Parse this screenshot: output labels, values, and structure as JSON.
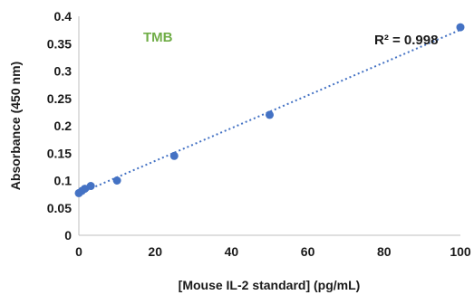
{
  "chart_data": {
    "type": "scatter",
    "title": "",
    "xlabel": "[Mouse IL-2 standard] (pg/mL)",
    "ylabel": "Absorbance (450 nm)",
    "xlim": [
      0,
      100
    ],
    "ylim": [
      0,
      0.4
    ],
    "x_ticks": [
      "0",
      "20",
      "40",
      "60",
      "80",
      "100"
    ],
    "y_ticks": [
      "0",
      "0.05",
      "0.1",
      "0.15",
      "0.2",
      "0.25",
      "0.3",
      "0.35",
      "0.4"
    ],
    "grid": false,
    "legend": "none",
    "series": [
      {
        "x": [
          0,
          0.78,
          1.56,
          3.13,
          10,
          25,
          50,
          100
        ],
        "y": [
          0.077,
          0.081,
          0.085,
          0.09,
          0.1,
          0.145,
          0.22,
          0.38
        ],
        "color": "#4472c4",
        "trendline": "linear",
        "trendline_style": "dotted"
      }
    ],
    "annotations": {
      "assay_label": "TMB",
      "assay_label_color": "#70ad47",
      "r_squared": "R² = 0.998"
    }
  }
}
